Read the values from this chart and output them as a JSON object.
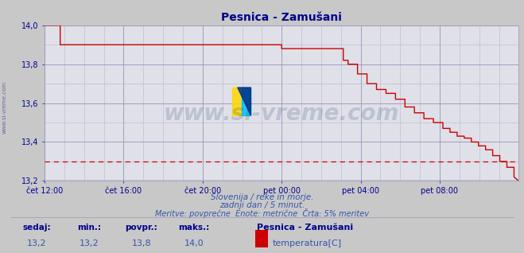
{
  "title": "Pesnica - Zamušani",
  "title_color": "#00008B",
  "bg_color": "#c8c8c8",
  "plot_bg_color": "#e0e0e8",
  "line_color": "#cc0000",
  "dashed_line_color": "#cc0000",
  "dashed_line_y": 13.3,
  "bottom_line_color": "#6666cc",
  "ylabel_color": "#000090",
  "xlabel_color": "#000090",
  "watermark_text": "www.si-vreme.com",
  "watermark_color": "#1a3a6a",
  "watermark_alpha": 0.18,
  "left_label": "www.si-vreme.com",
  "left_label_color": "#6666aa",
  "subtitle1": "Slovenija / reke in morje.",
  "subtitle2": "zadnji dan / 5 minut.",
  "subtitle3": "Meritve: povprečne  Enote: metrične  Črta: 5% meritev",
  "subtitle_color": "#3355aa",
  "footer_sedaj_label": "sedaj:",
  "footer_min_label": "min.:",
  "footer_povpr_label": "povpr.:",
  "footer_maks_label": "maks.:",
  "footer_sedaj": "13,2",
  "footer_min": "13,2",
  "footer_povpr": "13,8",
  "footer_maks": "14,0",
  "footer_series_name": "Pesnica - Zamušani",
  "footer_series_unit": "temperatura[C]",
  "footer_label_color": "#00008B",
  "footer_value_color": "#3355aa",
  "ylim": [
    13.2,
    14.0
  ],
  "yticks": [
    13.2,
    13.4,
    13.6,
    13.8,
    14.0
  ],
  "xtick_labels": [
    "čet 12:00",
    "čet 16:00",
    "čet 20:00",
    "pet 00:00",
    "pet 04:00",
    "pet 08:00"
  ],
  "xtick_positions": [
    0.0,
    0.1667,
    0.3333,
    0.5,
    0.6667,
    0.8333
  ],
  "x_pts": [
    0.0,
    0.033,
    0.033,
    0.055,
    0.055,
    0.5,
    0.5,
    0.505,
    0.505,
    0.63,
    0.63,
    0.64,
    0.64,
    0.66,
    0.66,
    0.68,
    0.68,
    0.7,
    0.7,
    0.72,
    0.72,
    0.74,
    0.74,
    0.76,
    0.76,
    0.78,
    0.78,
    0.8,
    0.8,
    0.82,
    0.82,
    0.84,
    0.84,
    0.855,
    0.855,
    0.87,
    0.87,
    0.885,
    0.885,
    0.9,
    0.9,
    0.915,
    0.915,
    0.93,
    0.93,
    0.945,
    0.945,
    0.96,
    0.96,
    0.975,
    0.975,
    0.99,
    0.99,
    1.0
  ],
  "y_pts": [
    14.0,
    14.0,
    13.9,
    13.9,
    13.9,
    13.9,
    13.88,
    13.88,
    13.88,
    13.88,
    13.82,
    13.82,
    13.8,
    13.8,
    13.75,
    13.75,
    13.7,
    13.7,
    13.67,
    13.67,
    13.65,
    13.65,
    13.62,
    13.62,
    13.58,
    13.58,
    13.55,
    13.55,
    13.52,
    13.52,
    13.5,
    13.5,
    13.47,
    13.47,
    13.45,
    13.45,
    13.43,
    13.43,
    13.42,
    13.42,
    13.4,
    13.4,
    13.38,
    13.38,
    13.36,
    13.36,
    13.33,
    13.33,
    13.3,
    13.3,
    13.27,
    13.27,
    13.22,
    13.2
  ]
}
